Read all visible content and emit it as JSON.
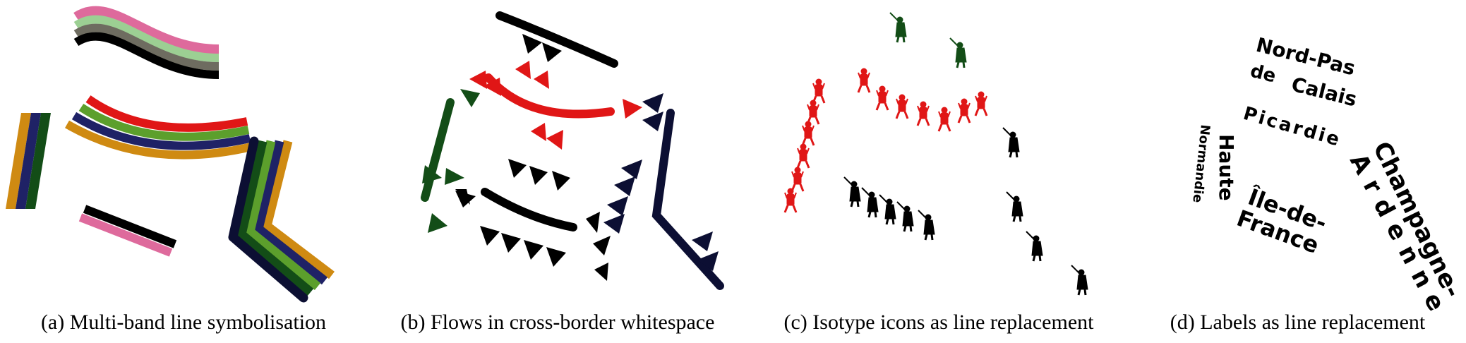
{
  "colors": {
    "black": "#000000",
    "pink": "#de6a9c",
    "light_green": "#9ccf93",
    "grey": "#6e6c60",
    "red": "#e01616",
    "green": "#5c9f2c",
    "navy": "#1f2266",
    "orange": "#cf8a12",
    "dark_green": "#134d17",
    "dark_navy": "#0c0f33"
  },
  "panels": [
    {
      "id": "a",
      "caption": "(a)  Multi-band line symbolisation"
    },
    {
      "id": "b",
      "caption": "(b)  Flows in cross-border whitespace"
    },
    {
      "id": "c",
      "caption": "(c)  Isotype icons as line replacement"
    },
    {
      "id": "d",
      "caption": "(d)  Labels as line replacement"
    }
  ],
  "labels": {
    "nord_line1": "Nord-Pas",
    "nord_line2": "de",
    "nord_line3": "Calais",
    "picardie": "Picardie",
    "haute": "Haute",
    "normandie": "Normandie",
    "ile_line1": "Île-de-",
    "ile_line2": "France",
    "champagne": "Champagne-",
    "ardenne": "Ardenne"
  },
  "icons": {
    "red_figures": "marching-figure-icon",
    "black_figures": "soldier-rifle-icon",
    "green_figures": "soldier-rifle-icon"
  }
}
